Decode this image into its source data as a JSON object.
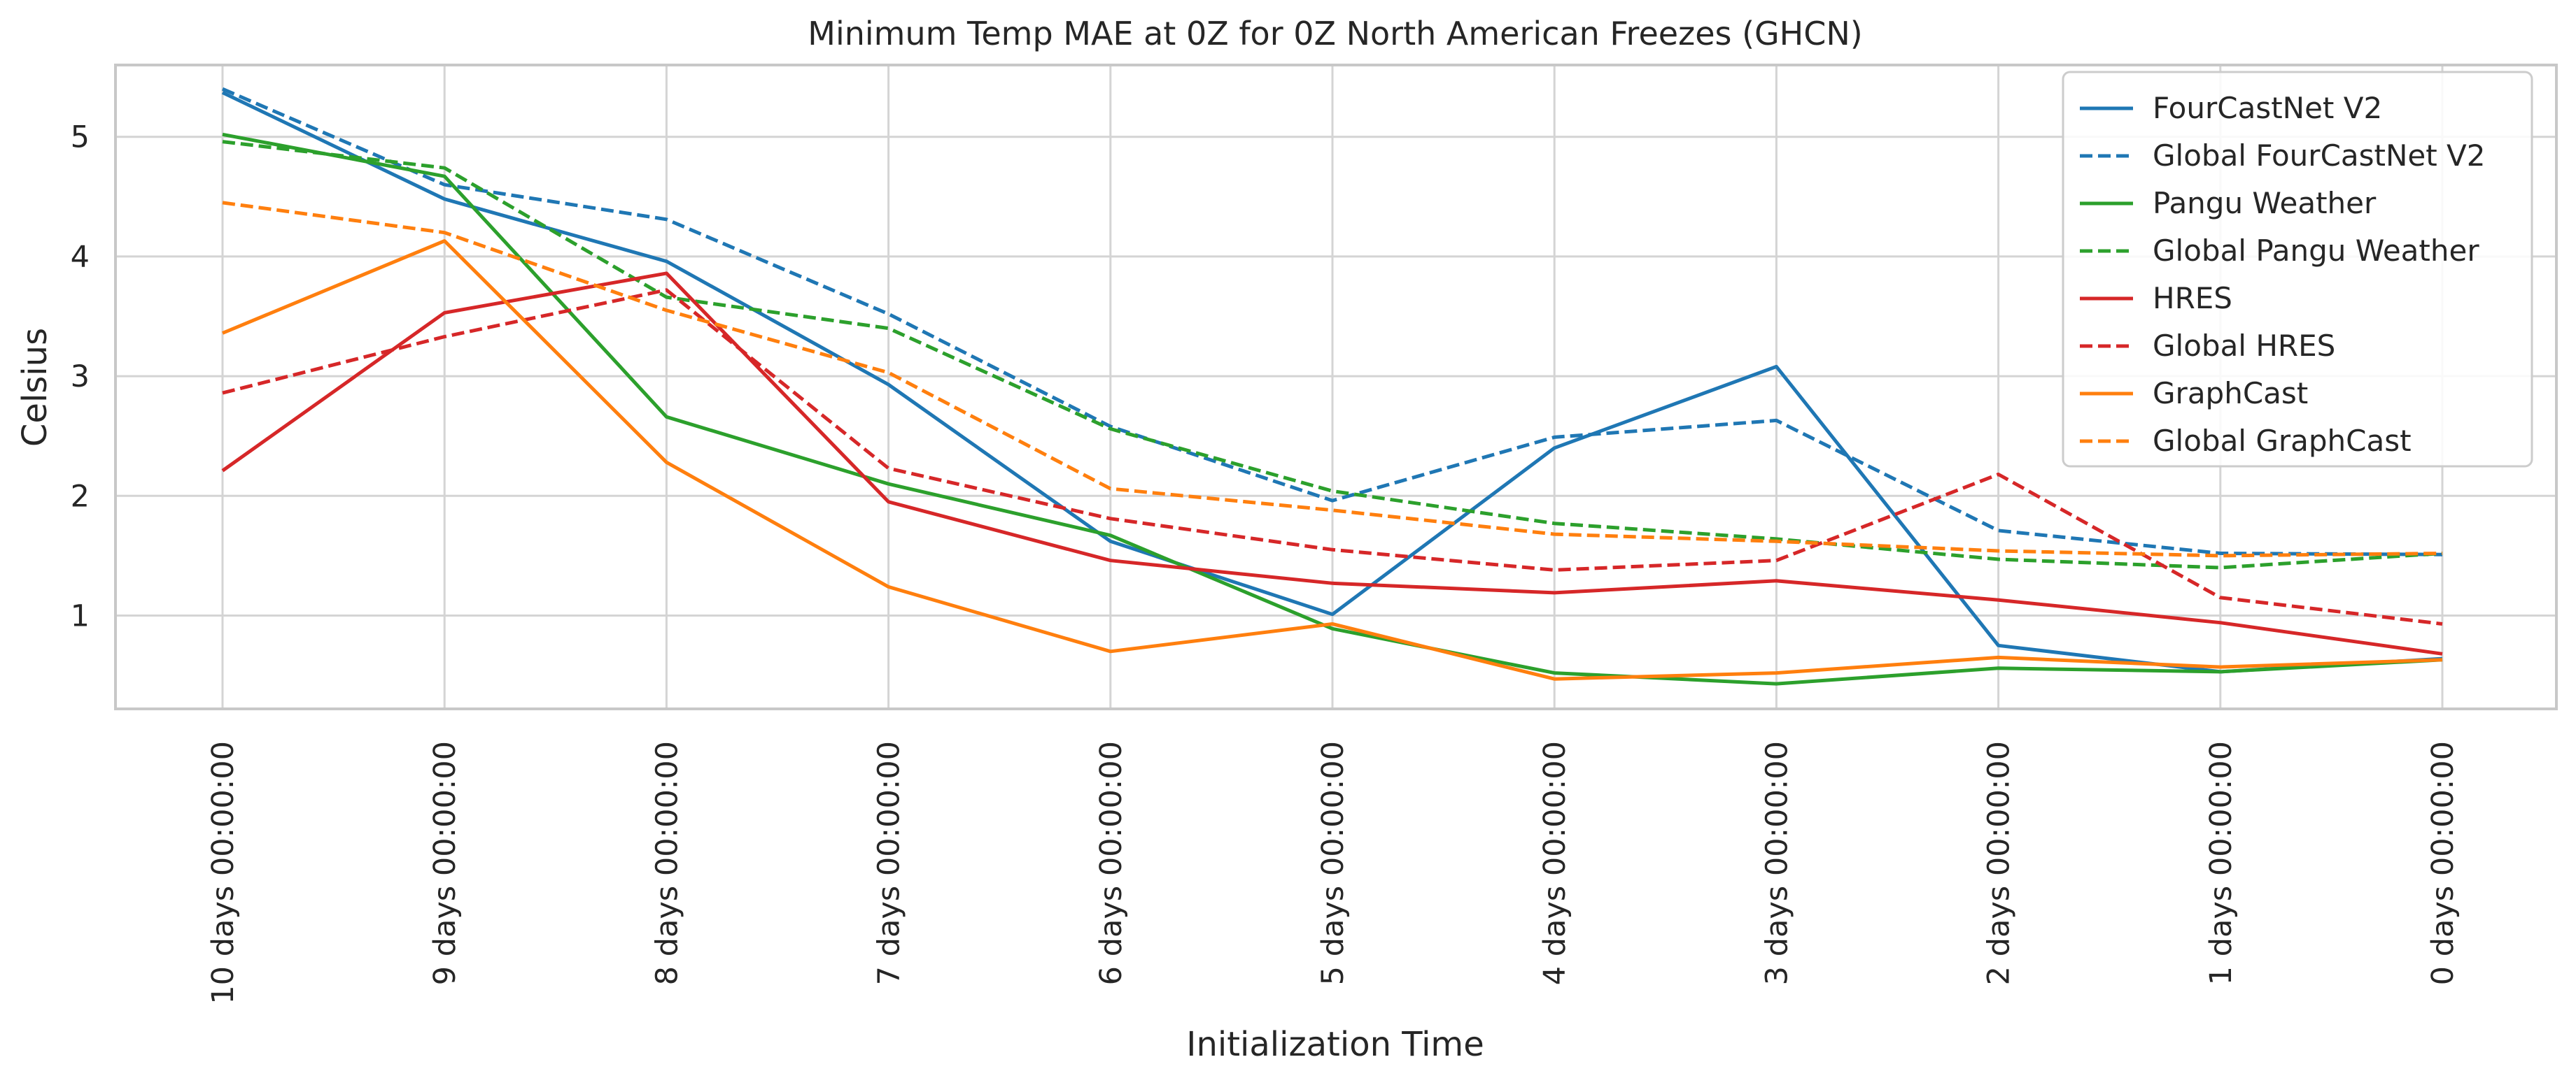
{
  "chart_data": {
    "type": "line",
    "title": "Minimum Temp MAE at 0Z for 0Z North American Freezes (GHCN)",
    "xlabel": "Initialization Time",
    "ylabel": "Celsius",
    "categories": [
      "10 days 00:00:00",
      "9 days 00:00:00",
      "8 days 00:00:00",
      "7 days 00:00:00",
      "6 days 00:00:00",
      "5 days 00:00:00",
      "4 days 00:00:00",
      "3 days 00:00:00",
      "2 days 00:00:00",
      "1 days 00:00:00",
      "0 days 00:00:00"
    ],
    "ylim": [
      0.22,
      5.6
    ],
    "yticks": [
      1,
      2,
      3,
      4,
      5
    ],
    "grid": true,
    "legend_position": "top-right",
    "series": [
      {
        "name": "FourCastNet V2",
        "color": "#1f77b4",
        "dash": "solid",
        "values": [
          5.37,
          4.48,
          3.96,
          2.93,
          1.62,
          1.01,
          2.4,
          3.08,
          0.75,
          0.53,
          0.64
        ]
      },
      {
        "name": "Global FourCastNet V2",
        "color": "#1f77b4",
        "dash": "dashed",
        "values": [
          5.4,
          4.6,
          4.31,
          3.52,
          2.58,
          1.96,
          2.49,
          2.63,
          1.71,
          1.52,
          1.51
        ]
      },
      {
        "name": "Pangu Weather",
        "color": "#2ca02c",
        "dash": "solid",
        "values": [
          5.02,
          4.67,
          2.66,
          2.1,
          1.67,
          0.89,
          0.52,
          0.43,
          0.56,
          0.53,
          0.63
        ]
      },
      {
        "name": "Global Pangu Weather",
        "color": "#2ca02c",
        "dash": "dashed",
        "values": [
          4.96,
          4.74,
          3.66,
          3.4,
          2.56,
          2.04,
          1.77,
          1.64,
          1.47,
          1.4,
          1.52
        ]
      },
      {
        "name": "HRES",
        "color": "#d62728",
        "dash": "solid",
        "values": [
          2.21,
          3.53,
          3.86,
          1.95,
          1.46,
          1.27,
          1.19,
          1.29,
          1.13,
          0.94,
          0.68
        ]
      },
      {
        "name": "Global HRES",
        "color": "#d62728",
        "dash": "dashed",
        "values": [
          2.86,
          3.33,
          3.72,
          2.23,
          1.81,
          1.55,
          1.38,
          1.46,
          2.18,
          1.15,
          0.93
        ]
      },
      {
        "name": "GraphCast",
        "color": "#ff7f0e",
        "dash": "solid",
        "values": [
          3.36,
          4.13,
          2.28,
          1.24,
          0.7,
          0.93,
          0.47,
          0.52,
          0.65,
          0.57,
          0.63
        ]
      },
      {
        "name": "Global GraphCast",
        "color": "#ff7f0e",
        "dash": "dashed",
        "values": [
          4.45,
          4.2,
          3.55,
          3.03,
          2.06,
          1.88,
          1.68,
          1.62,
          1.54,
          1.5,
          1.52
        ]
      }
    ]
  }
}
